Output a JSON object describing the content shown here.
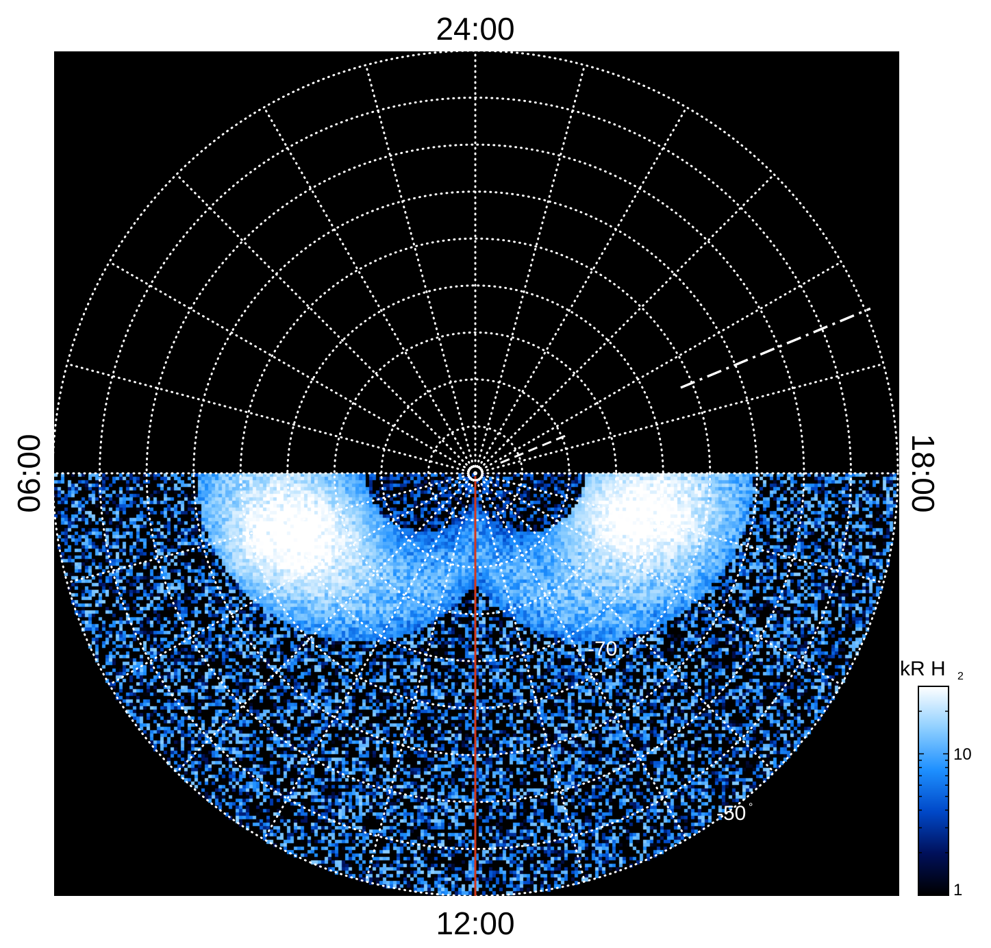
{
  "chart_data": {
    "type": "heatmap",
    "projection": "polar",
    "title": "",
    "local_time_labels": {
      "top": "24:00",
      "bottom": "12:00",
      "left": "06:00",
      "right": "18:00"
    },
    "latitude_labels": [
      {
        "text": "-70",
        "unit": "°"
      },
      {
        "text": "-50",
        "unit": "°"
      }
    ],
    "latitude_circles_deg": [
      -80,
      -70,
      -60,
      -50,
      -40,
      -30,
      -20,
      -10
    ],
    "meridian_step_hours": 1,
    "grid": true,
    "colorbar": {
      "label_main": "kR H",
      "label_sub": "2",
      "scale": "log",
      "range": [
        1,
        30
      ],
      "ticks": [
        "1",
        "10"
      ],
      "colors": [
        "#000000",
        "#00105a",
        "#0048c8",
        "#1e90ff",
        "#8ecfff",
        "#ffffff"
      ]
    },
    "auroral_oval": {
      "latitude_deg": -75,
      "local_time_coverage": "06:00-18:00 through 12:00",
      "peak_kR": 30
    },
    "highlight_meridian": {
      "local_time": "12:00",
      "color": "#d2381c"
    },
    "dashed_segment": {
      "local_time": "~17:15",
      "color": "#ffffff"
    },
    "background_color": "#000000",
    "grid_color": "#ffffff"
  }
}
